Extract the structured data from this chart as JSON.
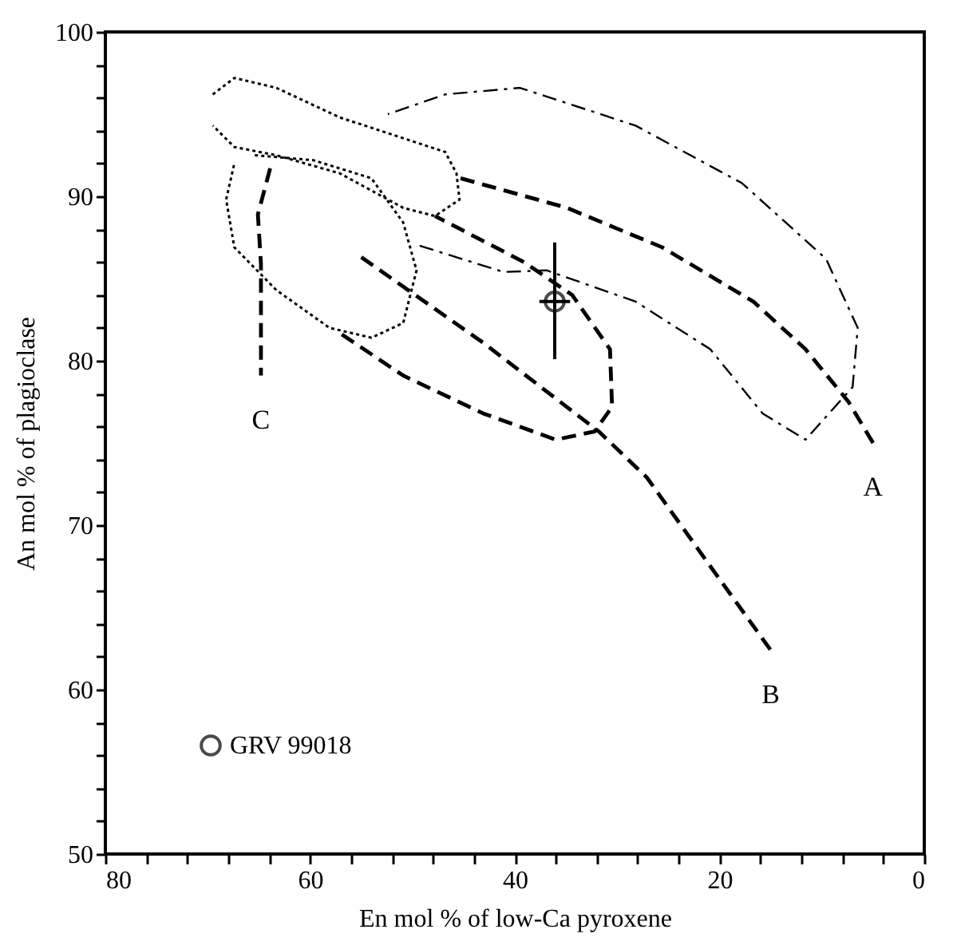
{
  "chart_data": {
    "type": "line",
    "xlabel": "En mol % of low-Ca pyroxene",
    "ylabel": "An mol % of plagioclase",
    "xlim": [
      80,
      0
    ],
    "xticks": [
      80,
      {
        "value": 76,
        "label": null
      },
      {
        "value": 72,
        "label": null
      },
      {
        "value": 68,
        "label": null
      },
      {
        "value": 64,
        "label": null
      },
      60,
      {
        "value": 56,
        "label": null
      },
      {
        "value": 52,
        "label": null
      },
      {
        "value": 48,
        "label": null
      },
      {
        "value": 44,
        "label": null
      },
      40,
      {
        "value": 36,
        "label": null
      },
      {
        "value": 32,
        "label": null
      },
      {
        "value": 28,
        "label": null
      },
      {
        "value": 24,
        "label": null
      },
      20,
      {
        "value": 16,
        "label": null
      },
      {
        "value": 12,
        "label": null
      },
      {
        "value": 8,
        "label": null
      },
      {
        "value": 4,
        "label": null
      },
      0
    ],
    "ylim": [
      50,
      100
    ],
    "yticks": [
      50,
      {
        "value": 52,
        "label": null
      },
      {
        "value": 54,
        "label": null
      },
      {
        "value": 56,
        "label": null
      },
      {
        "value": 58,
        "label": null
      },
      60,
      {
        "value": 62,
        "label": null
      },
      {
        "value": 64,
        "label": null
      },
      {
        "value": 66,
        "label": null
      },
      {
        "value": 68,
        "label": null
      },
      70,
      {
        "value": 72,
        "label": null
      },
      {
        "value": 74,
        "label": null
      },
      {
        "value": 76,
        "label": null
      },
      {
        "value": 78,
        "label": null
      },
      80,
      {
        "value": 82,
        "label": null
      },
      {
        "value": 84,
        "label": null
      },
      {
        "value": 86,
        "label": null
      },
      {
        "value": 88,
        "label": null
      },
      90,
      {
        "value": 92,
        "label": null
      },
      {
        "value": 94,
        "label": null
      },
      {
        "value": 96,
        "label": null
      },
      {
        "value": 98,
        "label": null
      },
      100
    ],
    "grid": false,
    "legend": "bottom left",
    "series": [
      {
        "type": "line",
        "name": "A",
        "color": "#000000",
        "line_style": "dashed",
        "x": [
          45.3,
          34.9,
          25.6,
          16.7,
          11.6,
          7.4,
          5.0
        ],
        "values": [
          91.1,
          89.3,
          86.9,
          83.6,
          80.7,
          77.5,
          75.0
        ]
      },
      {
        "type": "line",
        "name": "B",
        "color": "#000000",
        "line_style": "dashed",
        "x": [
          55.0,
          43.1,
          31.8,
          27.1,
          20.9,
          15.0
        ],
        "values": [
          86.3,
          81.1,
          75.7,
          72.9,
          67.5,
          62.4
        ]
      },
      {
        "type": "line",
        "name": "C",
        "color": "#000000",
        "line_style": "dashed",
        "x": [
          63.9,
          65.1,
          64.8,
          64.8
        ],
        "values": [
          91.7,
          88.9,
          85.9,
          79.1
        ]
      },
      {
        "type": "line",
        "color": "#000000",
        "line_style": "dashdot",
        "x": [
          49.3,
          41.1,
          36.9,
          28.2,
          20.9,
          15.8,
          11.6,
          7.0,
          6.5,
          9.6,
          17.8,
          28.2,
          39.5,
          46.8,
          52.4
        ],
        "values": [
          87.0,
          85.4,
          85.5,
          83.6,
          80.7,
          76.8,
          75.2,
          78.4,
          82.0,
          86.2,
          90.8,
          94.3,
          96.6,
          96.2,
          95.0
        ]
      },
      {
        "type": "line",
        "color": "#000000",
        "line_style": "dashed",
        "x": [
          56.9,
          50.9,
          43.1,
          36.0,
          32.2,
          30.5,
          30.7,
          34.4,
          39.1,
          47.8
        ],
        "values": [
          81.6,
          79.1,
          76.8,
          75.2,
          75.7,
          77.2,
          80.7,
          84.0,
          86.0,
          88.8
        ]
      },
      {
        "type": "line",
        "color": "#000000",
        "line_style": "dotted",
        "x": [
          69.5,
          67.4,
          63.3,
          57.1,
          46.8,
          45.7,
          45.4,
          47.8,
          50.9,
          57.1,
          63.3,
          67.4,
          69.5
        ],
        "values": [
          96.2,
          97.2,
          96.6,
          94.8,
          92.7,
          91.4,
          89.8,
          88.8,
          89.3,
          91.4,
          92.5,
          93.0,
          94.3
        ]
      },
      {
        "type": "line",
        "color": "#000000",
        "line_style": "dotted",
        "x": [
          65.4,
          59.7,
          54.0,
          50.9,
          49.6,
          50.9,
          54.0,
          58.1,
          63.3,
          67.4,
          68.2,
          67.4
        ],
        "values": [
          92.5,
          92.2,
          91.1,
          88.4,
          85.5,
          82.3,
          81.4,
          82.0,
          84.3,
          86.9,
          89.8,
          92.0
        ]
      },
      {
        "type": "scatter",
        "name": "GRV 99018",
        "color": "#000000",
        "marker": "circle",
        "x": [
          36.1
        ],
        "values": [
          83.6
        ],
        "errors": [
          [
            80.1,
            87.2
          ]
        ],
        "xerrors": [
          1.5
        ]
      }
    ]
  }
}
